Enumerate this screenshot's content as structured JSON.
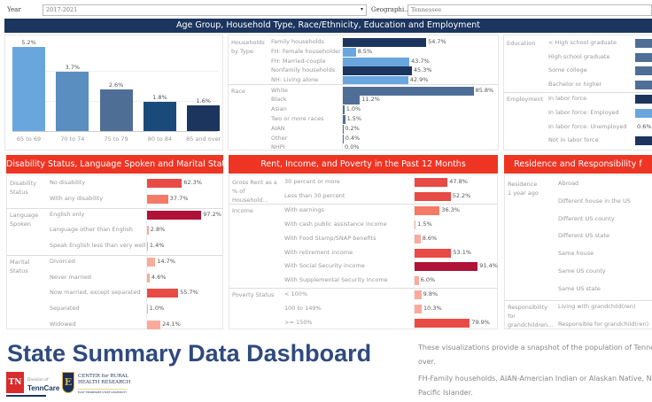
{
  "filters": {
    "year_label": "Year",
    "year_value": "2017-2021",
    "geo_label": "Geographi...",
    "geo_value": "Tennessee"
  },
  "header_top": "Age Group, Household Type, Race/Ethnicity, Education and Employment",
  "age_chart": {
    "type": "bar",
    "categories": [
      "65 to 69",
      "70 to 74",
      "75 to 79",
      "80 to 84",
      "85 and over"
    ],
    "values": [
      5.2,
      3.7,
      2.6,
      1.8,
      1.6
    ],
    "labels": [
      "5.2%",
      "3.7%",
      "2.6%",
      "1.8%",
      "1.6%"
    ],
    "colors": [
      "#6aa6de",
      "#5b8ec0",
      "#4f6e96",
      "#1a4a7a",
      "#1c355e"
    ],
    "ylim": [
      0,
      5.5
    ]
  },
  "households": {
    "sections": [
      {
        "label": "Households by Type",
        "rows": [
          {
            "label": "Family households",
            "value": 54.7,
            "text": "54.7%",
            "color": "#1c355e"
          },
          {
            "label": "FH: Female householder",
            "value": 8.5,
            "text": "8.5%",
            "color": "#6aa6de"
          },
          {
            "label": "FH: Married-couple",
            "value": 43.7,
            "text": "43.7%",
            "color": "#6aa6de"
          },
          {
            "label": "Nonfamily households",
            "value": 45.3,
            "text": "45.3%",
            "color": "#1c355e"
          },
          {
            "label": "NH: Living alone",
            "value": 42.9,
            "text": "42.9%",
            "color": "#6aa6de"
          }
        ]
      },
      {
        "label": "Race",
        "rows": [
          {
            "label": "White",
            "value": 85.8,
            "text": "85.8%",
            "color": "#4f6e96"
          },
          {
            "label": "Black",
            "value": 11.2,
            "text": "11.2%",
            "color": "#4f6e96"
          },
          {
            "label": "Asian",
            "value": 1.0,
            "text": "1.0%",
            "color": "#4f6e96"
          },
          {
            "label": "Two or more races",
            "value": 1.5,
            "text": "1.5%",
            "color": "#4f6e96"
          },
          {
            "label": "AIAN",
            "value": 0.2,
            "text": "0.2%",
            "color": "#4f6e96"
          },
          {
            "label": "Other",
            "value": 0.4,
            "text": "0.4%",
            "color": "#4f6e96"
          },
          {
            "label": "NHPI",
            "value": 0.0,
            "text": "0.0%",
            "color": "#4f6e96"
          }
        ]
      }
    ]
  },
  "education": {
    "sections": [
      {
        "label": "Education",
        "rows": [
          {
            "label": "< High school graduate",
            "text": "",
            "color": "#4f6e96"
          },
          {
            "label": "High school graduate",
            "text": "",
            "color": "#4f6e96"
          },
          {
            "label": "Some college",
            "text": "",
            "color": "#4f6e96"
          },
          {
            "label": "Bachelor or higher",
            "text": "",
            "color": "#4f6e96"
          }
        ]
      },
      {
        "label": "Employment",
        "rows": [
          {
            "label": "In labor force",
            "text": "",
            "color": "#1c355e"
          },
          {
            "label": "In labor force: Employed",
            "text": "",
            "color": "#6aa6de"
          },
          {
            "label": "In labor force: Unemployed",
            "text": "0.6%",
            "color": ""
          },
          {
            "label": "Not in labor force",
            "text": "",
            "color": "#1c355e"
          }
        ]
      }
    ]
  },
  "red_color": "#ee3524",
  "disability": {
    "title": "Disability Status, Language Spoken and Marital Status",
    "sections": [
      {
        "label": "Disability Status",
        "rows": [
          {
            "label": "No disability",
            "value": 62.3,
            "text": "62.3%"
          },
          {
            "label": "With any disability",
            "value": 37.7,
            "text": "37.7%"
          }
        ]
      },
      {
        "label": "Language Spoken",
        "rows": [
          {
            "label": "English only",
            "value": 97.2,
            "text": "97.2%"
          },
          {
            "label": "Language other than English",
            "value": 2.8,
            "text": "2.8%"
          },
          {
            "label": "Speak English less than very well",
            "value": 1.4,
            "text": "1.4%"
          }
        ]
      },
      {
        "label": "Marital Status",
        "rows": [
          {
            "label": "Divorced",
            "value": 14.7,
            "text": "14.7%"
          },
          {
            "label": "Never married",
            "value": 4.6,
            "text": "4.6%"
          },
          {
            "label": "Now married, except separated",
            "value": 55.7,
            "text": "55.7%"
          },
          {
            "label": "Separated",
            "value": 1.0,
            "text": "1.0%"
          },
          {
            "label": "Widowed",
            "value": 24.1,
            "text": "24.1%"
          }
        ]
      }
    ]
  },
  "rent": {
    "title": "Rent, Income, and Poverty in the Past 12 Months",
    "sections": [
      {
        "label": "Gross Rent as a % of Household...",
        "rows": [
          {
            "label": "30 percent or more",
            "value": 47.8,
            "text": "47.8%"
          },
          {
            "label": "Less than 30 percent",
            "value": 52.2,
            "text": "52.2%"
          }
        ]
      },
      {
        "label": "Income",
        "rows": [
          {
            "label": "With earnings",
            "value": 36.3,
            "text": "36.3%"
          },
          {
            "label": "With cash public assistance income",
            "value": 1.5,
            "text": "1.5%"
          },
          {
            "label": "With Food Stamp/SNAP benefits",
            "value": 8.6,
            "text": "8.6%"
          },
          {
            "label": "With retirement income",
            "value": 53.1,
            "text": "53.1%"
          },
          {
            "label": "With Social Security income",
            "value": 91.4,
            "text": "91.4%"
          },
          {
            "label": "With Supplemental Security Income",
            "value": 6.0,
            "text": "6.0%"
          }
        ]
      },
      {
        "label": "Poverty Status",
        "rows": [
          {
            "label": "< 100%",
            "value": 9.8,
            "text": "9.8%"
          },
          {
            "label": "100 to 149%",
            "value": 10.3,
            "text": "10.3%"
          },
          {
            "label": ">= 150%",
            "value": 79.9,
            "text": "79.9%"
          }
        ]
      }
    ]
  },
  "residence": {
    "title": "Residence and Responsibility f",
    "sections": [
      {
        "label": "Residence 1 year ago",
        "rows": [
          {
            "label": "Abroad"
          },
          {
            "label": "Different house in the US"
          },
          {
            "label": "Different US county"
          },
          {
            "label": "Different US state"
          },
          {
            "label": "Same house"
          },
          {
            "label": "Same US county"
          },
          {
            "label": "Same US state"
          }
        ]
      },
      {
        "label": "Responsibility for grandchildren...",
        "rows": [
          {
            "label": "Living with grandchild(ren)"
          },
          {
            "label": "Responsible for grandchild(ren)"
          }
        ]
      }
    ]
  },
  "footer": {
    "title": "State Summary Data Dashboard",
    "note1": "These visualizations provide a snapshot of the population of Tenne",
    "note1b": "over.",
    "note2": "FH-Family households, AIAN-Amercian Indian or Alaskan Native, NI",
    "note2b": "Pacific Islander.",
    "logo_tn": "TN",
    "logo_division": "Division of",
    "logo_tenncare": "TennCare",
    "logo_e": "E",
    "logo_center": "CENTER for RURAL",
    "logo_health": "HEALTH RESEARCH",
    "logo_etsu": "EAST TENNESSEE STATE UNIVERSITY"
  }
}
